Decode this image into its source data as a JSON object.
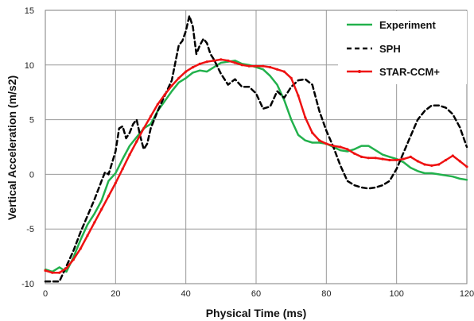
{
  "chart_data": {
    "type": "line",
    "xlabel": "Physical Time (ms)",
    "ylabel": "Vertical Acceleration (m/s2)",
    "xlim": [
      0,
      120
    ],
    "ylim": [
      -10,
      15
    ],
    "x_ticks": [
      "0",
      "20",
      "40",
      "60",
      "80",
      "100",
      "120"
    ],
    "y_ticks": [
      "-10",
      "-5",
      "0",
      "5",
      "10",
      "15"
    ],
    "grid": true,
    "legend_position": "top-right",
    "series": [
      {
        "name": "Experiment",
        "color": "#22b14c",
        "style": "solid",
        "x": [
          0,
          2,
          4,
          6,
          8,
          10,
          12,
          14,
          16,
          18,
          20,
          22,
          24,
          26,
          28,
          30,
          32,
          34,
          36,
          38,
          40,
          42,
          44,
          46,
          48,
          50,
          52,
          54,
          56,
          58,
          60,
          62,
          64,
          66,
          68,
          70,
          72,
          74,
          76,
          78,
          80,
          82,
          84,
          86,
          88,
          90,
          92,
          94,
          96,
          98,
          100,
          102,
          104,
          106,
          108,
          110,
          112,
          114,
          116,
          118,
          120
        ],
        "y": [
          -8.7,
          -8.9,
          -8.5,
          -8.9,
          -7.6,
          -6.0,
          -4.6,
          -3.6,
          -2.4,
          -0.6,
          0.1,
          1.4,
          2.6,
          3.4,
          4.2,
          4.6,
          5.8,
          6.7,
          7.6,
          8.4,
          8.8,
          9.3,
          9.5,
          9.4,
          9.8,
          10.2,
          10.3,
          10.4,
          10.1,
          10.0,
          9.8,
          9.6,
          9.0,
          8.2,
          6.8,
          5.0,
          3.6,
          3.1,
          2.9,
          2.9,
          2.8,
          2.5,
          2.2,
          2.1,
          2.3,
          2.6,
          2.6,
          2.2,
          1.8,
          1.6,
          1.4,
          1.1,
          0.6,
          0.3,
          0.1,
          0.1,
          0.0,
          -0.1,
          -0.2,
          -0.4,
          -0.5
        ]
      },
      {
        "name": "SPH",
        "color": "#000000",
        "style": "dashed",
        "x": [
          0,
          2,
          4,
          6,
          8,
          10,
          12,
          14,
          16,
          17,
          18,
          20,
          21,
          22,
          23,
          24,
          25,
          26,
          27,
          28,
          29,
          30,
          32,
          34,
          36,
          37,
          38,
          39,
          40,
          41,
          42,
          43,
          44,
          45,
          46,
          47,
          48,
          50,
          52,
          54,
          56,
          58,
          60,
          62,
          64,
          66,
          68,
          70,
          72,
          74,
          76,
          78,
          80,
          82,
          84,
          86,
          88,
          90,
          92,
          94,
          96,
          98,
          100,
          102,
          104,
          106,
          108,
          110,
          112,
          114,
          116,
          118,
          120
        ],
        "y": [
          -9.8,
          -9.8,
          -9.8,
          -8.4,
          -7.0,
          -5.3,
          -3.8,
          -2.3,
          -0.6,
          0.2,
          0.0,
          2.1,
          4.2,
          4.4,
          3.3,
          3.8,
          4.6,
          5.0,
          3.5,
          2.3,
          2.8,
          4.2,
          5.8,
          7.2,
          8.6,
          10.2,
          11.8,
          12.2,
          13.1,
          14.5,
          13.5,
          11.0,
          11.8,
          12.4,
          12.0,
          11.0,
          10.5,
          9.2,
          8.2,
          8.7,
          8.0,
          8.0,
          7.4,
          6.0,
          6.2,
          7.6,
          7.0,
          8.0,
          8.6,
          8.7,
          8.2,
          5.8,
          4.0,
          2.5,
          0.8,
          -0.6,
          -1.0,
          -1.2,
          -1.3,
          -1.2,
          -1.0,
          -0.6,
          0.5,
          2.0,
          3.5,
          5.0,
          5.8,
          6.3,
          6.3,
          6.1,
          5.5,
          4.3,
          2.5
        ]
      },
      {
        "name": "STAR-CCM+",
        "color": "#ee1111",
        "style": "solid-marker",
        "x": [
          0,
          2,
          4,
          6,
          8,
          10,
          12,
          14,
          16,
          18,
          20,
          22,
          24,
          26,
          28,
          30,
          32,
          34,
          36,
          38,
          40,
          42,
          44,
          46,
          48,
          50,
          52,
          54,
          56,
          58,
          60,
          62,
          64,
          66,
          68,
          70,
          72,
          74,
          76,
          78,
          80,
          82,
          84,
          86,
          88,
          90,
          92,
          94,
          96,
          98,
          100,
          102,
          104,
          106,
          108,
          110,
          112,
          114,
          116,
          118,
          120
        ],
        "y": [
          -8.8,
          -9.0,
          -9.0,
          -8.6,
          -7.8,
          -6.8,
          -5.6,
          -4.4,
          -3.2,
          -2.0,
          -0.8,
          0.5,
          1.8,
          3.0,
          4.2,
          5.3,
          6.4,
          7.3,
          8.1,
          8.8,
          9.4,
          9.8,
          10.1,
          10.3,
          10.4,
          10.5,
          10.4,
          10.2,
          10.0,
          9.9,
          9.9,
          9.9,
          9.8,
          9.6,
          9.4,
          8.8,
          7.2,
          5.2,
          3.8,
          3.1,
          2.8,
          2.6,
          2.5,
          2.3,
          1.9,
          1.6,
          1.5,
          1.5,
          1.4,
          1.3,
          1.3,
          1.4,
          1.6,
          1.2,
          0.9,
          0.8,
          0.9,
          1.3,
          1.7,
          1.2,
          0.7
        ]
      }
    ]
  }
}
